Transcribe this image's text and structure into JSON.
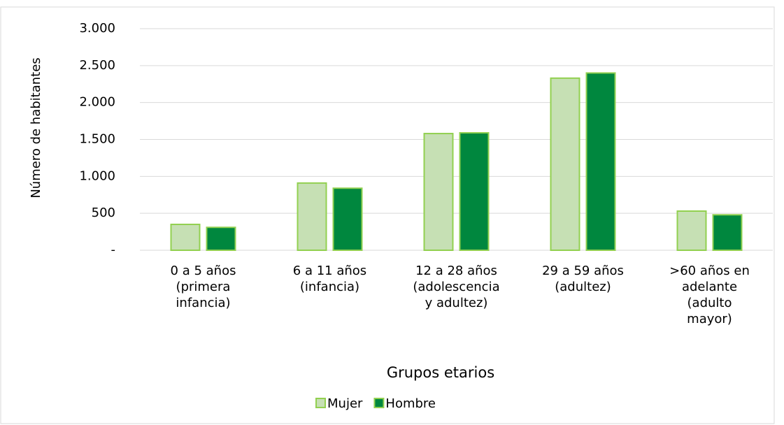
{
  "chart_data": {
    "type": "bar",
    "y_label": "Número de habitantes",
    "x_label": "Grupos etarios",
    "categories": [
      [
        "0 a 5 años",
        "(primera",
        "infancia)"
      ],
      [
        "6 a 11 años",
        "(infancia)"
      ],
      [
        "12 a 28 años",
        "(adolescencia",
        "y adultez)"
      ],
      [
        "29 a 59 años",
        "(adultez)"
      ],
      [
        ">60 años en",
        "adelante",
        "(adulto",
        "mayor)"
      ]
    ],
    "series": [
      {
        "name": "Mujer",
        "color": "#c6e0b4",
        "values": [
          350,
          910,
          1580,
          2330,
          530
        ]
      },
      {
        "name": "Hombre",
        "color": "#00873e",
        "values": [
          310,
          840,
          1590,
          2400,
          480
        ]
      }
    ],
    "ylim": [
      0,
      3000
    ],
    "yticks": [
      {
        "value": 0,
        "label": "-"
      },
      500,
      {
        "value": 1000,
        "label": "1.000"
      },
      {
        "value": 1500,
        "label": "1.500"
      },
      {
        "value": 2000,
        "label": "2.000"
      },
      {
        "value": 2500,
        "label": "2.500"
      },
      {
        "value": 3000,
        "label": "3.000"
      }
    ],
    "grid": true,
    "legend": "bottom"
  }
}
